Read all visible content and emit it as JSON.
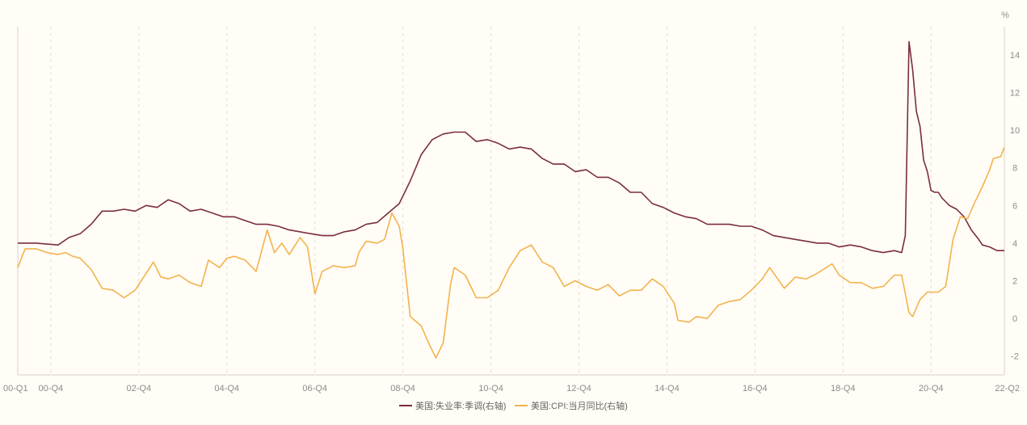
{
  "chart_data": {
    "type": "line",
    "unit_label": "%",
    "x_ticks": [
      "00-Q1",
      "00-Q4",
      "02-Q4",
      "04-Q4",
      "06-Q4",
      "08-Q4",
      "10-Q4",
      "12-Q4",
      "14-Q4",
      "16-Q4",
      "18-Q4",
      "20-Q4",
      "22-Q2"
    ],
    "y_ticks": [
      -2,
      0,
      2,
      4,
      6,
      8,
      10,
      12,
      14
    ],
    "ylim": [
      -3,
      15.5
    ],
    "x_range": [
      "2000-01",
      "2022-06"
    ],
    "grid": "vertical-dashed",
    "legend_position": "bottom-center",
    "series": [
      {
        "name": "美国:失业率:季调(右轴)",
        "color": "#7b2d3b",
        "points": [
          [
            "2000-01",
            4.0
          ],
          [
            "2000-06",
            4.0
          ],
          [
            "2000-12",
            3.9
          ],
          [
            "2001-03",
            4.3
          ],
          [
            "2001-06",
            4.5
          ],
          [
            "2001-09",
            5.0
          ],
          [
            "2001-12",
            5.7
          ],
          [
            "2002-03",
            5.7
          ],
          [
            "2002-06",
            5.8
          ],
          [
            "2002-09",
            5.7
          ],
          [
            "2002-12",
            6.0
          ],
          [
            "2003-03",
            5.9
          ],
          [
            "2003-06",
            6.3
          ],
          [
            "2003-09",
            6.1
          ],
          [
            "2003-12",
            5.7
          ],
          [
            "2004-03",
            5.8
          ],
          [
            "2004-06",
            5.6
          ],
          [
            "2004-09",
            5.4
          ],
          [
            "2004-12",
            5.4
          ],
          [
            "2005-03",
            5.2
          ],
          [
            "2005-06",
            5.0
          ],
          [
            "2005-09",
            5.0
          ],
          [
            "2005-12",
            4.9
          ],
          [
            "2006-03",
            4.7
          ],
          [
            "2006-06",
            4.6
          ],
          [
            "2006-09",
            4.5
          ],
          [
            "2006-12",
            4.4
          ],
          [
            "2007-03",
            4.4
          ],
          [
            "2007-06",
            4.6
          ],
          [
            "2007-09",
            4.7
          ],
          [
            "2007-12",
            5.0
          ],
          [
            "2008-03",
            5.1
          ],
          [
            "2008-06",
            5.6
          ],
          [
            "2008-09",
            6.1
          ],
          [
            "2008-12",
            7.3
          ],
          [
            "2009-03",
            8.7
          ],
          [
            "2009-06",
            9.5
          ],
          [
            "2009-09",
            9.8
          ],
          [
            "2009-12",
            9.9
          ],
          [
            "2010-03",
            9.9
          ],
          [
            "2010-06",
            9.4
          ],
          [
            "2010-09",
            9.5
          ],
          [
            "2010-12",
            9.3
          ],
          [
            "2011-03",
            9.0
          ],
          [
            "2011-06",
            9.1
          ],
          [
            "2011-09",
            9.0
          ],
          [
            "2011-12",
            8.5
          ],
          [
            "2012-03",
            8.2
          ],
          [
            "2012-06",
            8.2
          ],
          [
            "2012-09",
            7.8
          ],
          [
            "2012-12",
            7.9
          ],
          [
            "2013-03",
            7.5
          ],
          [
            "2013-06",
            7.5
          ],
          [
            "2013-09",
            7.2
          ],
          [
            "2013-12",
            6.7
          ],
          [
            "2014-03",
            6.7
          ],
          [
            "2014-06",
            6.1
          ],
          [
            "2014-09",
            5.9
          ],
          [
            "2014-12",
            5.6
          ],
          [
            "2015-03",
            5.4
          ],
          [
            "2015-06",
            5.3
          ],
          [
            "2015-09",
            5.0
          ],
          [
            "2015-12",
            5.0
          ],
          [
            "2016-03",
            5.0
          ],
          [
            "2016-06",
            4.9
          ],
          [
            "2016-09",
            4.9
          ],
          [
            "2016-12",
            4.7
          ],
          [
            "2017-03",
            4.4
          ],
          [
            "2017-06",
            4.3
          ],
          [
            "2017-09",
            4.2
          ],
          [
            "2017-12",
            4.1
          ],
          [
            "2018-03",
            4.0
          ],
          [
            "2018-06",
            4.0
          ],
          [
            "2018-09",
            3.8
          ],
          [
            "2018-12",
            3.9
          ],
          [
            "2019-03",
            3.8
          ],
          [
            "2019-06",
            3.6
          ],
          [
            "2019-09",
            3.5
          ],
          [
            "2019-12",
            3.6
          ],
          [
            "2020-02",
            3.5
          ],
          [
            "2020-03",
            4.4
          ],
          [
            "2020-04",
            14.7
          ],
          [
            "2020-05",
            13.2
          ],
          [
            "2020-06",
            11.0
          ],
          [
            "2020-07",
            10.2
          ],
          [
            "2020-08",
            8.4
          ],
          [
            "2020-09",
            7.8
          ],
          [
            "2020-10",
            6.8
          ],
          [
            "2020-11",
            6.7
          ],
          [
            "2020-12",
            6.7
          ],
          [
            "2021-01",
            6.4
          ],
          [
            "2021-03",
            6.0
          ],
          [
            "2021-05",
            5.8
          ],
          [
            "2021-07",
            5.4
          ],
          [
            "2021-09",
            4.7
          ],
          [
            "2021-11",
            4.2
          ],
          [
            "2021-12",
            3.9
          ],
          [
            "2022-02",
            3.8
          ],
          [
            "2022-04",
            3.6
          ],
          [
            "2022-06",
            3.6
          ]
        ]
      },
      {
        "name": "美国:CPI:当月同比(右轴)",
        "color": "#f4b24d",
        "points": [
          [
            "2000-01",
            2.7
          ],
          [
            "2000-03",
            3.7
          ],
          [
            "2000-06",
            3.7
          ],
          [
            "2000-09",
            3.5
          ],
          [
            "2000-12",
            3.4
          ],
          [
            "2001-02",
            3.5
          ],
          [
            "2001-04",
            3.3
          ],
          [
            "2001-06",
            3.2
          ],
          [
            "2001-09",
            2.6
          ],
          [
            "2001-12",
            1.6
          ],
          [
            "2002-03",
            1.5
          ],
          [
            "2002-06",
            1.1
          ],
          [
            "2002-09",
            1.5
          ],
          [
            "2002-12",
            2.4
          ],
          [
            "2003-02",
            3.0
          ],
          [
            "2003-04",
            2.2
          ],
          [
            "2003-06",
            2.1
          ],
          [
            "2003-09",
            2.3
          ],
          [
            "2003-12",
            1.9
          ],
          [
            "2004-03",
            1.7
          ],
          [
            "2004-05",
            3.1
          ],
          [
            "2004-08",
            2.7
          ],
          [
            "2004-10",
            3.2
          ],
          [
            "2004-12",
            3.3
          ],
          [
            "2005-03",
            3.1
          ],
          [
            "2005-06",
            2.5
          ],
          [
            "2005-09",
            4.7
          ],
          [
            "2005-11",
            3.5
          ],
          [
            "2006-01",
            4.0
          ],
          [
            "2006-03",
            3.4
          ],
          [
            "2006-06",
            4.3
          ],
          [
            "2006-08",
            3.8
          ],
          [
            "2006-10",
            1.3
          ],
          [
            "2006-12",
            2.5
          ],
          [
            "2007-03",
            2.8
          ],
          [
            "2007-06",
            2.7
          ],
          [
            "2007-09",
            2.8
          ],
          [
            "2007-10",
            3.5
          ],
          [
            "2007-12",
            4.1
          ],
          [
            "2008-03",
            4.0
          ],
          [
            "2008-05",
            4.2
          ],
          [
            "2008-07",
            5.6
          ],
          [
            "2008-09",
            4.9
          ],
          [
            "2008-10",
            3.7
          ],
          [
            "2008-12",
            0.1
          ],
          [
            "2009-03",
            -0.4
          ],
          [
            "2009-05",
            -1.3
          ],
          [
            "2009-07",
            -2.1
          ],
          [
            "2009-09",
            -1.3
          ],
          [
            "2009-11",
            1.8
          ],
          [
            "2009-12",
            2.7
          ],
          [
            "2010-03",
            2.3
          ],
          [
            "2010-06",
            1.1
          ],
          [
            "2010-09",
            1.1
          ],
          [
            "2010-12",
            1.5
          ],
          [
            "2011-03",
            2.7
          ],
          [
            "2011-06",
            3.6
          ],
          [
            "2011-09",
            3.9
          ],
          [
            "2011-12",
            3.0
          ],
          [
            "2012-03",
            2.7
          ],
          [
            "2012-06",
            1.7
          ],
          [
            "2012-09",
            2.0
          ],
          [
            "2012-12",
            1.7
          ],
          [
            "2013-03",
            1.5
          ],
          [
            "2013-06",
            1.8
          ],
          [
            "2013-09",
            1.2
          ],
          [
            "2013-12",
            1.5
          ],
          [
            "2014-03",
            1.5
          ],
          [
            "2014-06",
            2.1
          ],
          [
            "2014-09",
            1.7
          ],
          [
            "2014-12",
            0.8
          ],
          [
            "2015-01",
            -0.1
          ],
          [
            "2015-04",
            -0.2
          ],
          [
            "2015-06",
            0.1
          ],
          [
            "2015-09",
            0.0
          ],
          [
            "2015-12",
            0.7
          ],
          [
            "2016-03",
            0.9
          ],
          [
            "2016-06",
            1.0
          ],
          [
            "2016-09",
            1.5
          ],
          [
            "2016-12",
            2.1
          ],
          [
            "2017-02",
            2.7
          ],
          [
            "2017-06",
            1.6
          ],
          [
            "2017-09",
            2.2
          ],
          [
            "2017-12",
            2.1
          ],
          [
            "2018-03",
            2.4
          ],
          [
            "2018-07",
            2.9
          ],
          [
            "2018-09",
            2.3
          ],
          [
            "2018-12",
            1.9
          ],
          [
            "2019-03",
            1.9
          ],
          [
            "2019-06",
            1.6
          ],
          [
            "2019-09",
            1.7
          ],
          [
            "2019-12",
            2.3
          ],
          [
            "2020-02",
            2.3
          ],
          [
            "2020-04",
            0.3
          ],
          [
            "2020-05",
            0.1
          ],
          [
            "2020-07",
            1.0
          ],
          [
            "2020-09",
            1.4
          ],
          [
            "2020-12",
            1.4
          ],
          [
            "2021-02",
            1.7
          ],
          [
            "2021-04",
            4.2
          ],
          [
            "2021-06",
            5.4
          ],
          [
            "2021-08",
            5.3
          ],
          [
            "2021-10",
            6.2
          ],
          [
            "2021-12",
            7.0
          ],
          [
            "2022-02",
            7.9
          ],
          [
            "2022-03",
            8.5
          ],
          [
            "2022-05",
            8.6
          ],
          [
            "2022-06",
            9.1
          ]
        ]
      }
    ]
  }
}
